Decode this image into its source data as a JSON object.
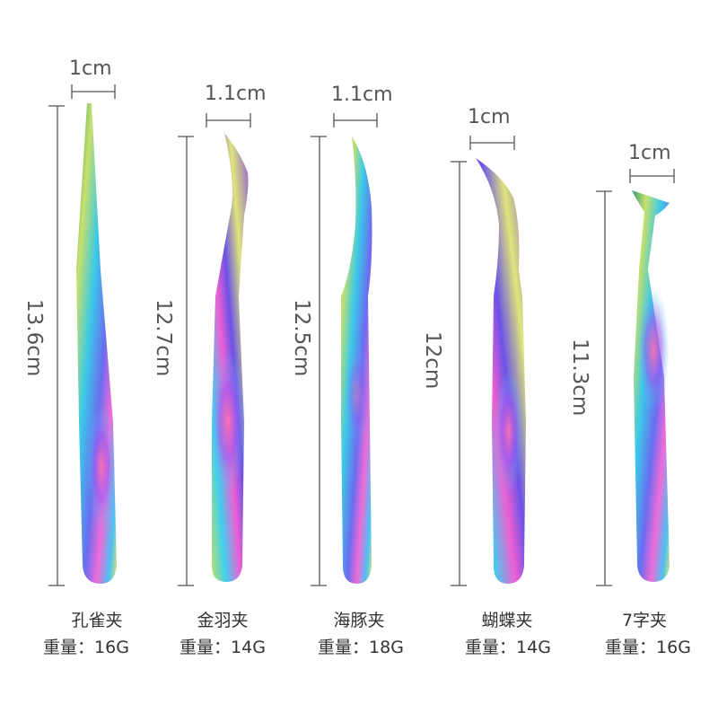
{
  "colors": {
    "background": "#ffffff",
    "guide_line": "#555555",
    "text": "#333333"
  },
  "products": [
    {
      "width_label": "1cm",
      "length_label": "13.6cm",
      "name": "孔雀夹",
      "weight": "重量：16G"
    },
    {
      "width_label": "1.1cm",
      "length_label": "12.7cm",
      "name": "金羽夹",
      "weight": "重量：14G"
    },
    {
      "width_label": "1.1cm",
      "length_label": "12.5cm",
      "name": "海豚夹",
      "weight": "重量：18G"
    },
    {
      "width_label": "1cm",
      "length_label": "12cm",
      "name": "蝴蝶夹",
      "weight": "重量：14G"
    },
    {
      "width_label": "1cm",
      "length_label": "11.3cm",
      "name": "7字夹",
      "weight": "重量：16G"
    }
  ]
}
